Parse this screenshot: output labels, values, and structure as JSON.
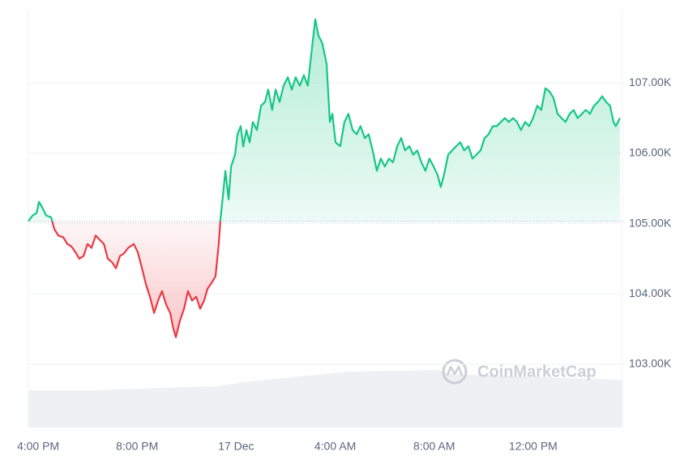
{
  "chart_data": {
    "type": "baseline-line",
    "watermark": "CoinMarketCap",
    "up_color": "#16c784",
    "down_color": "#ea3943",
    "baseline": 105030,
    "xlim": [
      -0.1,
      23.9
    ],
    "xticks": [
      {
        "value": 0,
        "label": "4:00 PM"
      },
      {
        "value": 4,
        "label": "8:00 PM"
      },
      {
        "value": 8,
        "label": "17 Dec"
      },
      {
        "value": 12,
        "label": "4:00 AM"
      },
      {
        "value": 16,
        "label": "8:00 AM"
      },
      {
        "value": 20,
        "label": "12:00 PM"
      }
    ],
    "ylim": [
      102100,
      108040
    ],
    "yticks": [
      {
        "value": 103000,
        "label": "103.00K"
      },
      {
        "value": 104000,
        "label": "104.00K"
      },
      {
        "value": 105000,
        "label": "105.00K"
      },
      {
        "value": 106000,
        "label": "106.00K"
      },
      {
        "value": 107000,
        "label": "107.00K"
      }
    ],
    "grid": true,
    "x": [
      -0.1,
      0.07,
      0.23,
      0.33,
      0.46,
      0.62,
      0.82,
      0.95,
      1.11,
      1.31,
      1.47,
      1.64,
      1.8,
      1.96,
      2.13,
      2.29,
      2.45,
      2.62,
      2.78,
      2.95,
      3.11,
      3.27,
      3.44,
      3.6,
      3.76,
      3.93,
      4.16,
      4.32,
      4.49,
      4.65,
      4.81,
      4.98,
      5.14,
      5.3,
      5.47,
      5.63,
      5.76,
      5.86,
      6.02,
      6.19,
      6.35,
      6.51,
      6.68,
      6.84,
      7.0,
      7.14,
      7.3,
      7.46,
      7.59,
      7.66,
      7.76,
      7.86,
      7.99,
      8.09,
      8.25,
      8.35,
      8.48,
      8.58,
      8.71,
      8.84,
      8.97,
      9.13,
      9.3,
      9.46,
      9.59,
      9.75,
      9.89,
      10.05,
      10.21,
      10.38,
      10.54,
      10.7,
      10.87,
      11.03,
      11.19,
      11.36,
      11.49,
      11.62,
      11.78,
      11.95,
      12.08,
      12.18,
      12.31,
      12.5,
      12.67,
      12.83,
      13.0,
      13.16,
      13.32,
      13.49,
      13.65,
      13.81,
      13.98,
      14.14,
      14.3,
      14.47,
      14.63,
      14.8,
      14.96,
      15.12,
      15.29,
      15.45,
      15.61,
      15.78,
      15.94,
      16.1,
      16.27,
      16.43,
      16.56,
      16.69,
      16.86,
      17.02,
      17.18,
      17.35,
      17.51,
      17.68,
      17.84,
      18.0,
      18.17,
      18.33,
      18.49,
      18.66,
      18.82,
      18.99,
      19.15,
      19.31,
      19.48,
      19.64,
      19.8,
      19.97,
      20.13,
      20.29,
      20.46,
      20.62,
      20.79,
      20.95,
      21.11,
      21.28,
      21.44,
      21.6,
      21.77,
      21.93,
      22.09,
      22.26,
      22.42,
      22.59,
      22.75,
      22.91,
      23.08,
      23.24,
      23.4,
      23.54,
      23.63,
      23.8
    ],
    "values": [
      105035,
      105115,
      105150,
      105310,
      105230,
      105115,
      105090,
      104920,
      104830,
      104805,
      104710,
      104675,
      104595,
      104500,
      104540,
      104710,
      104655,
      104830,
      104770,
      104710,
      104500,
      104455,
      104365,
      104540,
      104575,
      104655,
      104710,
      104595,
      104365,
      104135,
      103960,
      103730,
      103905,
      104040,
      103845,
      103730,
      103500,
      103385,
      103615,
      103790,
      104040,
      103905,
      103960,
      103790,
      103905,
      104075,
      104155,
      104250,
      104710,
      105060,
      105405,
      105750,
      105345,
      105810,
      105980,
      106270,
      106385,
      106095,
      106330,
      106155,
      106445,
      106330,
      106675,
      106730,
      106905,
      106615,
      106905,
      106730,
      106960,
      107080,
      106905,
      107080,
      106960,
      107110,
      106960,
      107500,
      107905,
      107675,
      107560,
      107270,
      106445,
      106560,
      106155,
      106100,
      106445,
      106560,
      106330,
      106270,
      106385,
      106215,
      106270,
      106040,
      105750,
      105925,
      105810,
      105925,
      105870,
      106100,
      106215,
      106040,
      106100,
      105980,
      106040,
      105870,
      105750,
      105925,
      105810,
      105690,
      105520,
      105690,
      105980,
      106040,
      106100,
      106155,
      106040,
      106100,
      105925,
      105980,
      106040,
      106215,
      106270,
      106385,
      106385,
      106445,
      106500,
      106445,
      106500,
      106445,
      106330,
      106445,
      106385,
      106500,
      106675,
      106615,
      106925,
      106880,
      106790,
      106560,
      106500,
      106445,
      106560,
      106615,
      106500,
      106560,
      106615,
      106560,
      106675,
      106730,
      106810,
      106730,
      106675,
      106445,
      106385,
      106500
    ]
  }
}
